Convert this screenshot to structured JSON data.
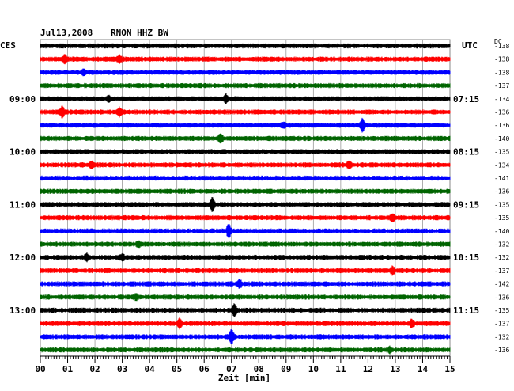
{
  "header": {
    "date": "Jul13,2008",
    "station": "RNON HHZ BW",
    "left_timezone": "CES",
    "right_timezone": "UTC",
    "dc_label": "DC"
  },
  "chart_data": {
    "type": "line",
    "title": "Jul13,2008   RNON HHZ BW",
    "xlabel": "Zeit [min]",
    "xlim": [
      0,
      15
    ],
    "x_ticks": [
      "00",
      "01",
      "02",
      "03",
      "04",
      "05",
      "06",
      "07",
      "08",
      "09",
      "10",
      "11",
      "12",
      "13",
      "14",
      "15"
    ],
    "grid": true,
    "trace_colors": [
      "#000000",
      "#ff0000",
      "#0000ff",
      "#006400"
    ],
    "left_time_labels": [
      {
        "trace": 4,
        "label": "09:00"
      },
      {
        "trace": 8,
        "label": "10:00"
      },
      {
        "trace": 12,
        "label": "11:00"
      },
      {
        "trace": 16,
        "label": "12:00"
      },
      {
        "trace": 20,
        "label": "13:00"
      }
    ],
    "right_time_labels": [
      {
        "trace": 4,
        "label": "07:15"
      },
      {
        "trace": 8,
        "label": "08:15"
      },
      {
        "trace": 12,
        "label": "09:15"
      },
      {
        "trace": 16,
        "label": "10:15"
      },
      {
        "trace": 20,
        "label": "11:15"
      }
    ],
    "dc_offsets": [
      -138,
      -138,
      -138,
      -137,
      -134,
      -136,
      -136,
      -140,
      -135,
      -134,
      -141,
      -136,
      -135,
      -135,
      -140,
      -132,
      -132,
      -137,
      -142,
      -136,
      -135,
      -137,
      -132,
      -136
    ],
    "events": [
      {
        "trace": 1,
        "minute": 0.9,
        "amp": 0.6
      },
      {
        "trace": 1,
        "minute": 2.9,
        "amp": 0.4
      },
      {
        "trace": 2,
        "minute": 1.6,
        "amp": 0.4
      },
      {
        "trace": 4,
        "minute": 2.5,
        "amp": 0.4
      },
      {
        "trace": 4,
        "minute": 6.8,
        "amp": 0.5
      },
      {
        "trace": 5,
        "minute": 0.8,
        "amp": 0.8
      },
      {
        "trace": 5,
        "minute": 2.9,
        "amp": 0.5
      },
      {
        "trace": 6,
        "minute": 8.9,
        "amp": 0.3
      },
      {
        "trace": 6,
        "minute": 11.8,
        "amp": 0.9
      },
      {
        "trace": 7,
        "minute": 6.6,
        "amp": 0.5
      },
      {
        "trace": 9,
        "minute": 1.9,
        "amp": 0.4
      },
      {
        "trace": 9,
        "minute": 11.3,
        "amp": 0.4
      },
      {
        "trace": 12,
        "minute": 6.3,
        "amp": 1.0
      },
      {
        "trace": 13,
        "minute": 12.9,
        "amp": 0.4
      },
      {
        "trace": 14,
        "minute": 6.9,
        "amp": 0.9
      },
      {
        "trace": 15,
        "minute": 3.6,
        "amp": 0.3
      },
      {
        "trace": 16,
        "minute": 1.7,
        "amp": 0.4
      },
      {
        "trace": 16,
        "minute": 3.0,
        "amp": 0.4
      },
      {
        "trace": 17,
        "minute": 12.9,
        "amp": 0.5
      },
      {
        "trace": 18,
        "minute": 7.3,
        "amp": 0.5
      },
      {
        "trace": 19,
        "minute": 3.5,
        "amp": 0.3
      },
      {
        "trace": 20,
        "minute": 7.1,
        "amp": 0.9
      },
      {
        "trace": 21,
        "minute": 5.1,
        "amp": 0.6
      },
      {
        "trace": 21,
        "minute": 13.6,
        "amp": 0.5
      },
      {
        "trace": 22,
        "minute": 7.0,
        "amp": 1.0
      },
      {
        "trace": 23,
        "minute": 12.8,
        "amp": 0.3
      }
    ]
  }
}
